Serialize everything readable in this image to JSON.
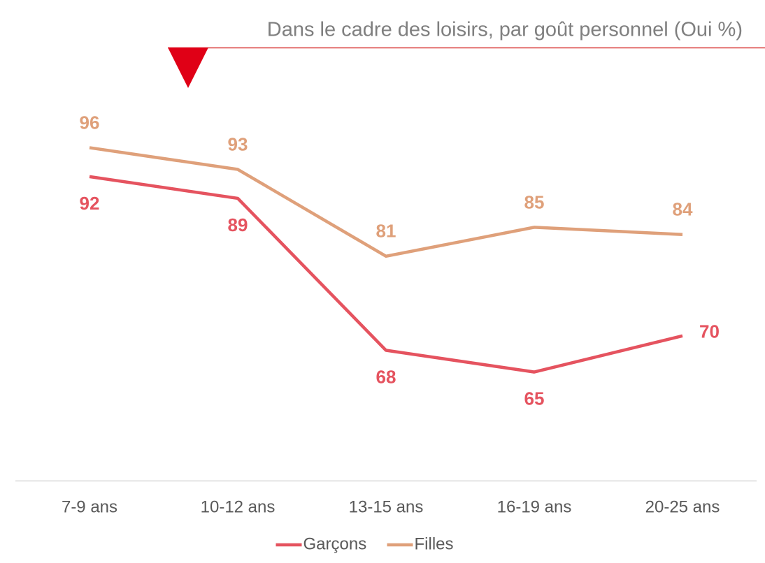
{
  "chart_data": {
    "type": "line",
    "title": "Dans le cadre des loisirs, par goût personnel (Oui %)",
    "categories": [
      "7-9 ans",
      "10-12 ans",
      "13-15 ans",
      "16-19 ans",
      "20-25 ans"
    ],
    "series": [
      {
        "name": "Garçons",
        "color": "#e5535f",
        "values": [
          92,
          89,
          68,
          65,
          70
        ]
      },
      {
        "name": "Filles",
        "color": "#dfa07a",
        "values": [
          96,
          93,
          81,
          85,
          84
        ]
      }
    ],
    "ylim": [
      50,
      100
    ],
    "legend": "bottom"
  }
}
